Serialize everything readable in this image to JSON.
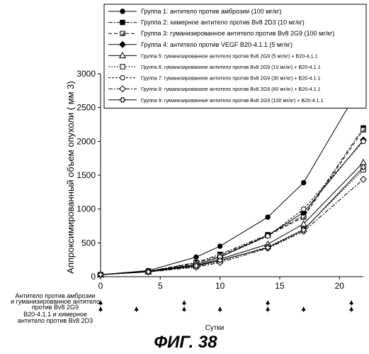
{
  "chart_data": {
    "type": "line",
    "title": "",
    "xlabel": "Сутки",
    "ylabel": "Аппроксимированный объем опухоли ( мм 3)",
    "xlim": [
      0,
      22
    ],
    "ylim": [
      0,
      3000
    ],
    "x_ticks": [
      "0",
      "5",
      "10",
      "15",
      "20"
    ],
    "y_ticks": [
      "0",
      "500",
      "1000",
      "1500",
      "2000",
      "2500",
      "3000"
    ],
    "x": [
      0,
      4,
      8,
      10,
      14,
      17,
      22
    ],
    "legend_position": "top-right",
    "series": [
      {
        "name": "Группа 1: антитело против амброзии (100 мг/кг)",
        "values": [
          30,
          90,
          290,
          450,
          880,
          1390,
          2890
        ],
        "marker": "filled-circle",
        "dash": ""
      },
      {
        "name": "Группа 2: химерное антитело против Bv8 2D3 (10 мг/кг)",
        "values": [
          30,
          80,
          210,
          330,
          620,
          900,
          2200
        ],
        "marker": "filled-square",
        "dash": "6,2,2,2"
      },
      {
        "name": "Группа 3: гуманизированное антитело против Bv8 2G9 (100 мг/кг)",
        "values": [
          30,
          80,
          200,
          310,
          610,
          880,
          2170
        ],
        "marker": "half-square",
        "dash": "5,3"
      },
      {
        "name": "Группа 4: антитело против VEGF B20-4.1.1 (5 мг/кг)",
        "values": [
          30,
          80,
          180,
          290,
          610,
          950,
          2020
        ],
        "marker": "filled-diamond",
        "dash": ""
      },
      {
        "name": "Группа 5: гуманизированное антитело против Bv8 2G9 (5 мг/кг) + B20-4.1.1",
        "values": [
          30,
          75,
          165,
          260,
          480,
          780,
          1690
        ],
        "marker": "open-triangle",
        "dash": ""
      },
      {
        "name": "Группа 6: гуманизированное антитело против Bv8 2G9 (10 мг/кг) + B20-4.1.1",
        "values": [
          30,
          72,
          150,
          230,
          440,
          700,
          1580
        ],
        "marker": "open-square",
        "dash": "2,2"
      },
      {
        "name": "Группа 7: гуманизированное антитело против Bv8 2G9 (30 мг/кг) + B20-4.1.1",
        "values": [
          30,
          75,
          180,
          290,
          600,
          1000,
          2000
        ],
        "marker": "open-circle",
        "dash": "3,2"
      },
      {
        "name": "Группа 8: гуманизированное антитело против Bv8 2G9 (60 мг/кг) + B20-4.1.1",
        "values": [
          30,
          70,
          140,
          210,
          420,
          670,
          1440
        ],
        "marker": "open-diamond",
        "dash": "6,2,2,2"
      },
      {
        "name": "Группа 9: гуманизированное антитело против Bv8 2G9 (100 мг/кг) + B20-4.1.1",
        "values": [
          30,
          72,
          160,
          240,
          430,
          690,
          1620
        ],
        "marker": "open-cross",
        "dash": ""
      }
    ],
    "dosing_rows": [
      {
        "label_lines": [
          "Антитело против амброзии",
          "и гуманизированное антитело",
          "против Bv8 2G9"
        ],
        "days": [
          0,
          7,
          14,
          21
        ]
      },
      {
        "label_lines": [
          "B20-4.1.1 и химерное",
          "антитело против Bv8 2D3"
        ],
        "days": [
          0,
          3,
          7,
          10,
          14,
          17,
          21
        ]
      }
    ]
  },
  "figure_label": "ФИГ. 38"
}
